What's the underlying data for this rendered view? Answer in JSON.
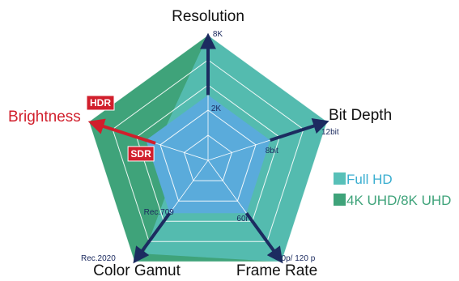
{
  "chart_data": {
    "type": "radar",
    "axes": [
      {
        "name": "Resolution",
        "ticks": [
          "2K",
          "8K"
        ]
      },
      {
        "name": "Bit Depth",
        "ticks": [
          "8bit",
          "12bit"
        ]
      },
      {
        "name": "Frame Rate",
        "ticks": [
          "60i",
          "60p/  120 p"
        ]
      },
      {
        "name": "Color Gamut",
        "ticks": [
          "Rec.709",
          "Rec.2020"
        ]
      },
      {
        "name": "Brightness",
        "ticks": [
          "SDR",
          "HDR"
        ]
      }
    ],
    "series": [
      {
        "name": "Full HD",
        "color": "#5aabdb",
        "values": [
          0.52,
          0.52,
          0.52,
          0.52,
          0.52
        ]
      },
      {
        "name": "4K UHD/8K UHD",
        "color": "#3fa37a",
        "values": [
          1.0,
          1.0,
          1.0,
          1.0,
          1.0
        ]
      }
    ],
    "highlight_axis": "Brightness",
    "highlight_color": "#d11f2c",
    "arrow_color": "#1c2b60"
  }
}
